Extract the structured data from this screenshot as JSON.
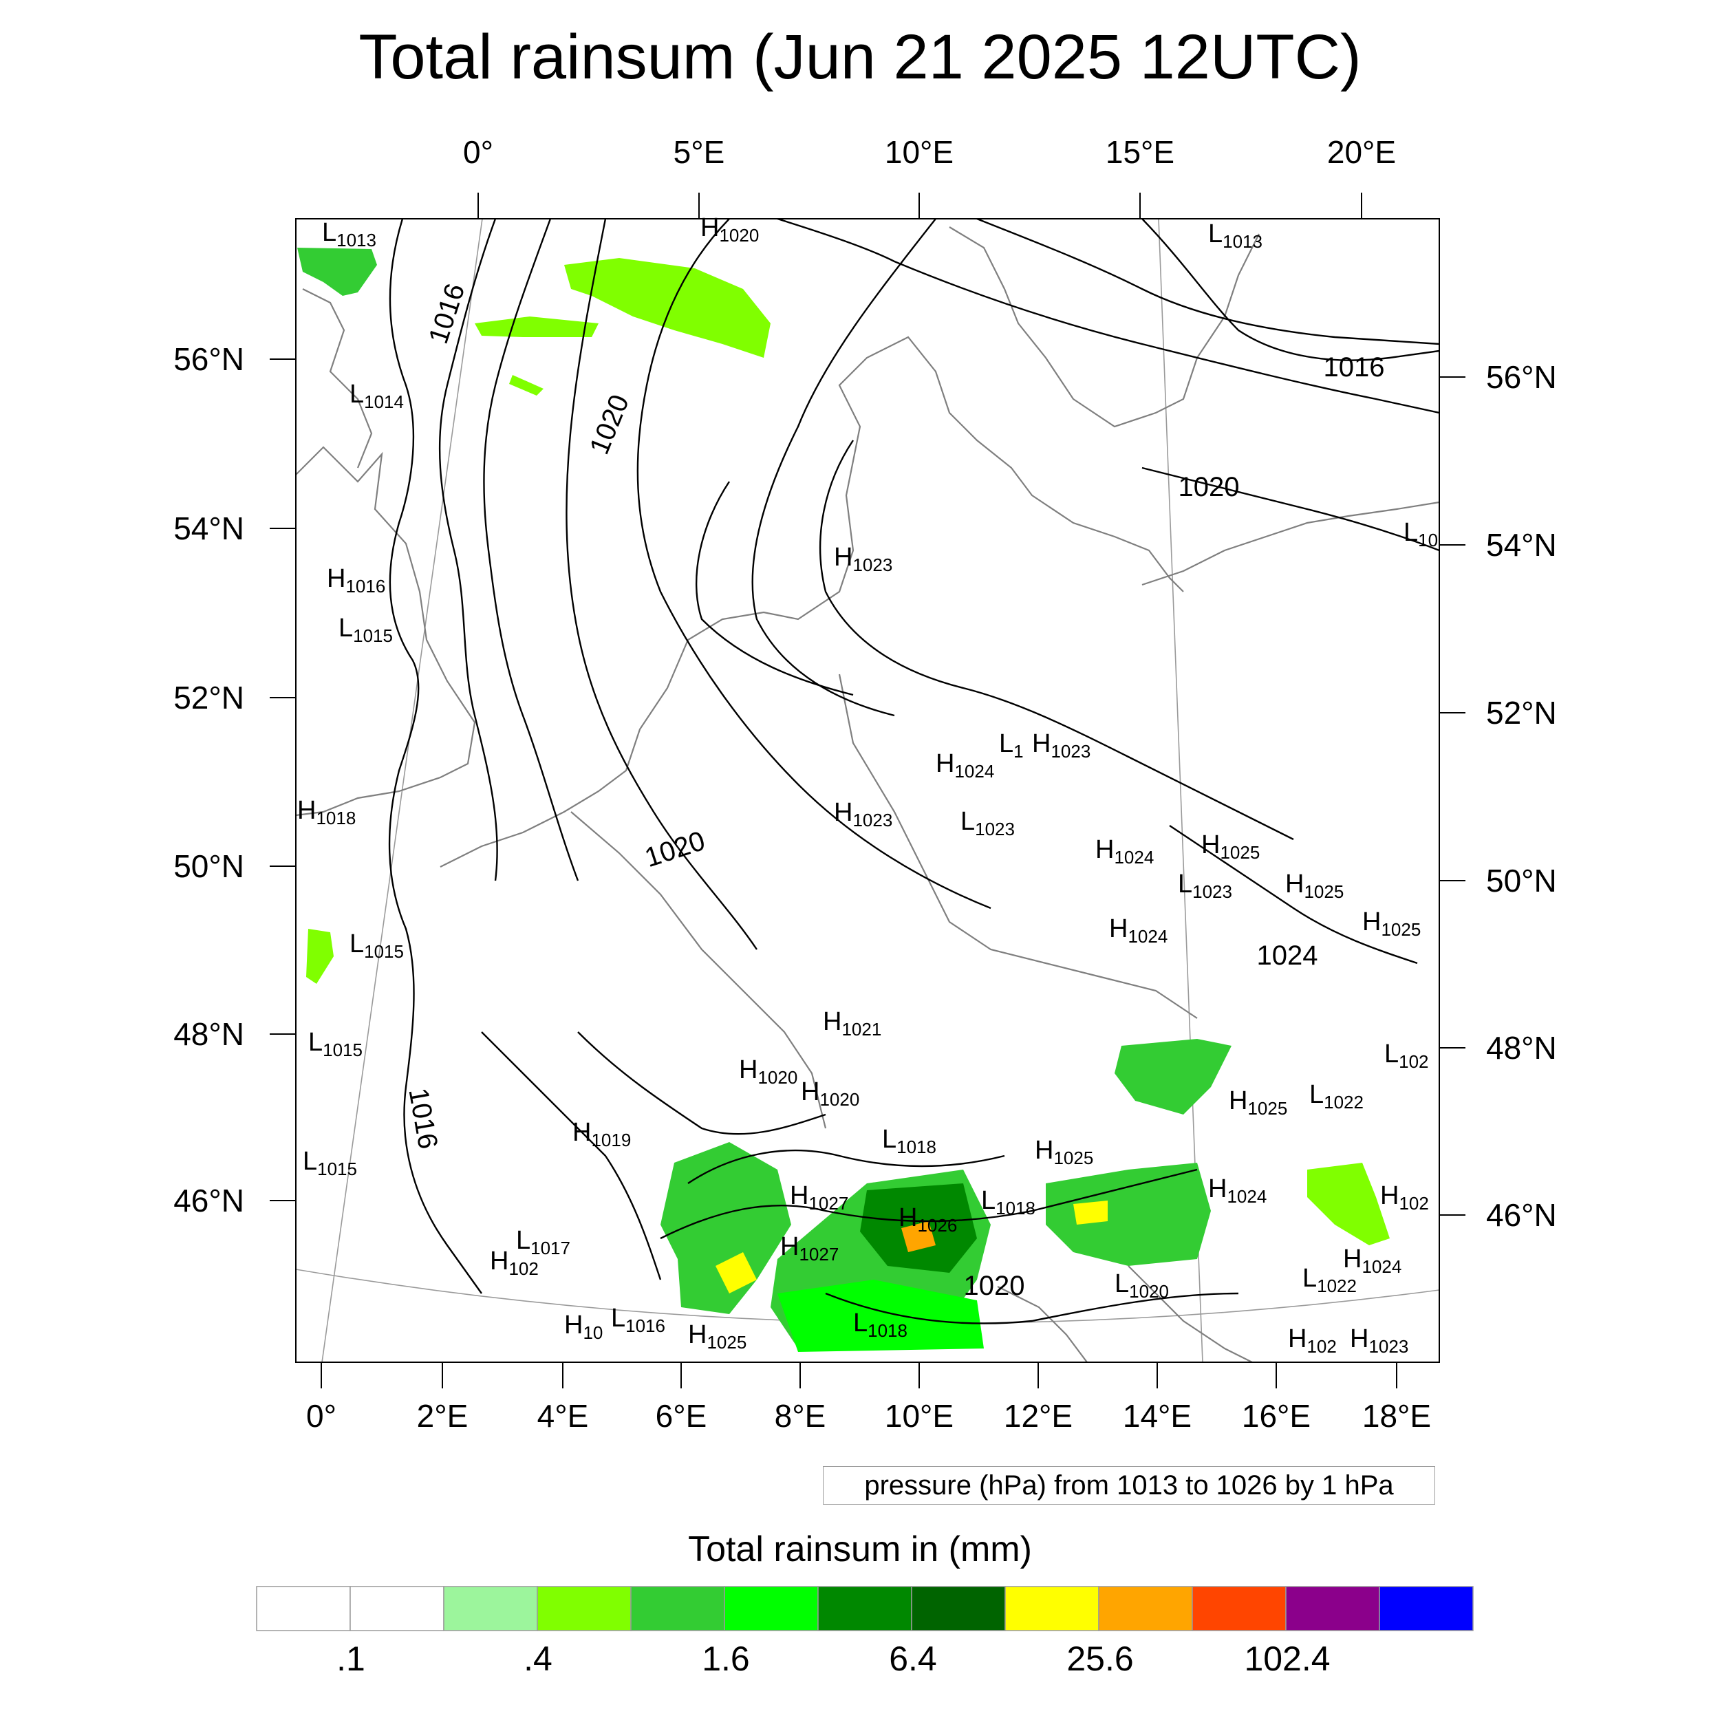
{
  "title": "Total rainsum (Jun 21 2025 12UTC)",
  "map": {
    "top_lon_labels": [
      "0°",
      "5°E",
      "10°E",
      "15°E",
      "20°E"
    ],
    "bottom_lon_labels": [
      "0°",
      "2°E",
      "4°E",
      "6°E",
      "8°E",
      "10°E",
      "12°E",
      "14°E",
      "16°E",
      "18°E"
    ],
    "left_lat_labels": [
      "56°N",
      "54°N",
      "52°N",
      "50°N",
      "48°N",
      "46°N"
    ],
    "right_lat_labels": [
      "56°N",
      "54°N",
      "52°N",
      "50°N",
      "48°N",
      "46°N"
    ],
    "pressure_centers": [
      {
        "type": "L",
        "value": "1013"
      },
      {
        "type": "H",
        "value": "1020"
      },
      {
        "type": "L",
        "value": "1013"
      },
      {
        "type": "L",
        "value": "1014"
      },
      {
        "type": "H",
        "value": "1016"
      },
      {
        "type": "L",
        "value": "1015"
      },
      {
        "type": "H",
        "value": "1023"
      },
      {
        "type": "L",
        "value": "10"
      },
      {
        "type": "H",
        "value": "1018"
      },
      {
        "type": "H",
        "value": "1024"
      },
      {
        "type": "H",
        "value": "1023"
      },
      {
        "type": "L",
        "value": "1"
      },
      {
        "type": "H",
        "value": "1023"
      },
      {
        "type": "L",
        "value": "1023"
      },
      {
        "type": "H",
        "value": "1024"
      },
      {
        "type": "H",
        "value": "1025"
      },
      {
        "type": "L",
        "value": "1023"
      },
      {
        "type": "H",
        "value": "1025"
      },
      {
        "type": "H",
        "value": "1024"
      },
      {
        "type": "H",
        "value": "1025"
      },
      {
        "type": "L",
        "value": "1015"
      },
      {
        "type": "H",
        "value": "1021"
      },
      {
        "type": "L",
        "value": "1015"
      },
      {
        "type": "H",
        "value": "1020"
      },
      {
        "type": "H",
        "value": "1020"
      },
      {
        "type": "L",
        "value": "102"
      },
      {
        "type": "H",
        "value": "1025"
      },
      {
        "type": "L",
        "value": "1022"
      },
      {
        "type": "H",
        "value": "1019"
      },
      {
        "type": "L",
        "value": "1018"
      },
      {
        "type": "H",
        "value": "1025"
      },
      {
        "type": "L",
        "value": "1015"
      },
      {
        "type": "H",
        "value": "1027"
      },
      {
        "type": "H",
        "value": "1026"
      },
      {
        "type": "L",
        "value": "1018"
      },
      {
        "type": "H",
        "value": "1024"
      },
      {
        "type": "H",
        "value": "102"
      },
      {
        "type": "H",
        "value": "1027"
      },
      {
        "type": "L",
        "value": "1017"
      },
      {
        "type": "H",
        "value": "102"
      },
      {
        "type": "H",
        "value": "1024"
      },
      {
        "type": "L",
        "value": "1020"
      },
      {
        "type": "L",
        "value": "1022"
      },
      {
        "type": "H",
        "value": "10"
      },
      {
        "type": "L",
        "value": "1016"
      },
      {
        "type": "H",
        "value": "1025"
      },
      {
        "type": "L",
        "value": "1018"
      },
      {
        "type": "H",
        "value": "102"
      },
      {
        "type": "H",
        "value": "1023"
      }
    ],
    "isobar_labels": [
      "1016",
      "1020",
      "1016",
      "1020",
      "1020",
      "1024",
      "1016",
      "1020"
    ],
    "contour_info": "pressure (hPa) from 1013 to 1026 by 1 hPa"
  },
  "colorbar": {
    "title": "Total rainsum in (mm)",
    "colors": [
      "#ffffff",
      "#ffffff",
      "#9cf59c",
      "#80ff00",
      "#33cc33",
      "#00ff00",
      "#008800",
      "#006400",
      "#ffff00",
      "#ffa500",
      "#ff4500",
      "#8b008b",
      "#0000ff"
    ],
    "tick_labels": [
      ".1",
      ".4",
      "1.6",
      "6.4",
      "25.6",
      "102.4"
    ]
  }
}
